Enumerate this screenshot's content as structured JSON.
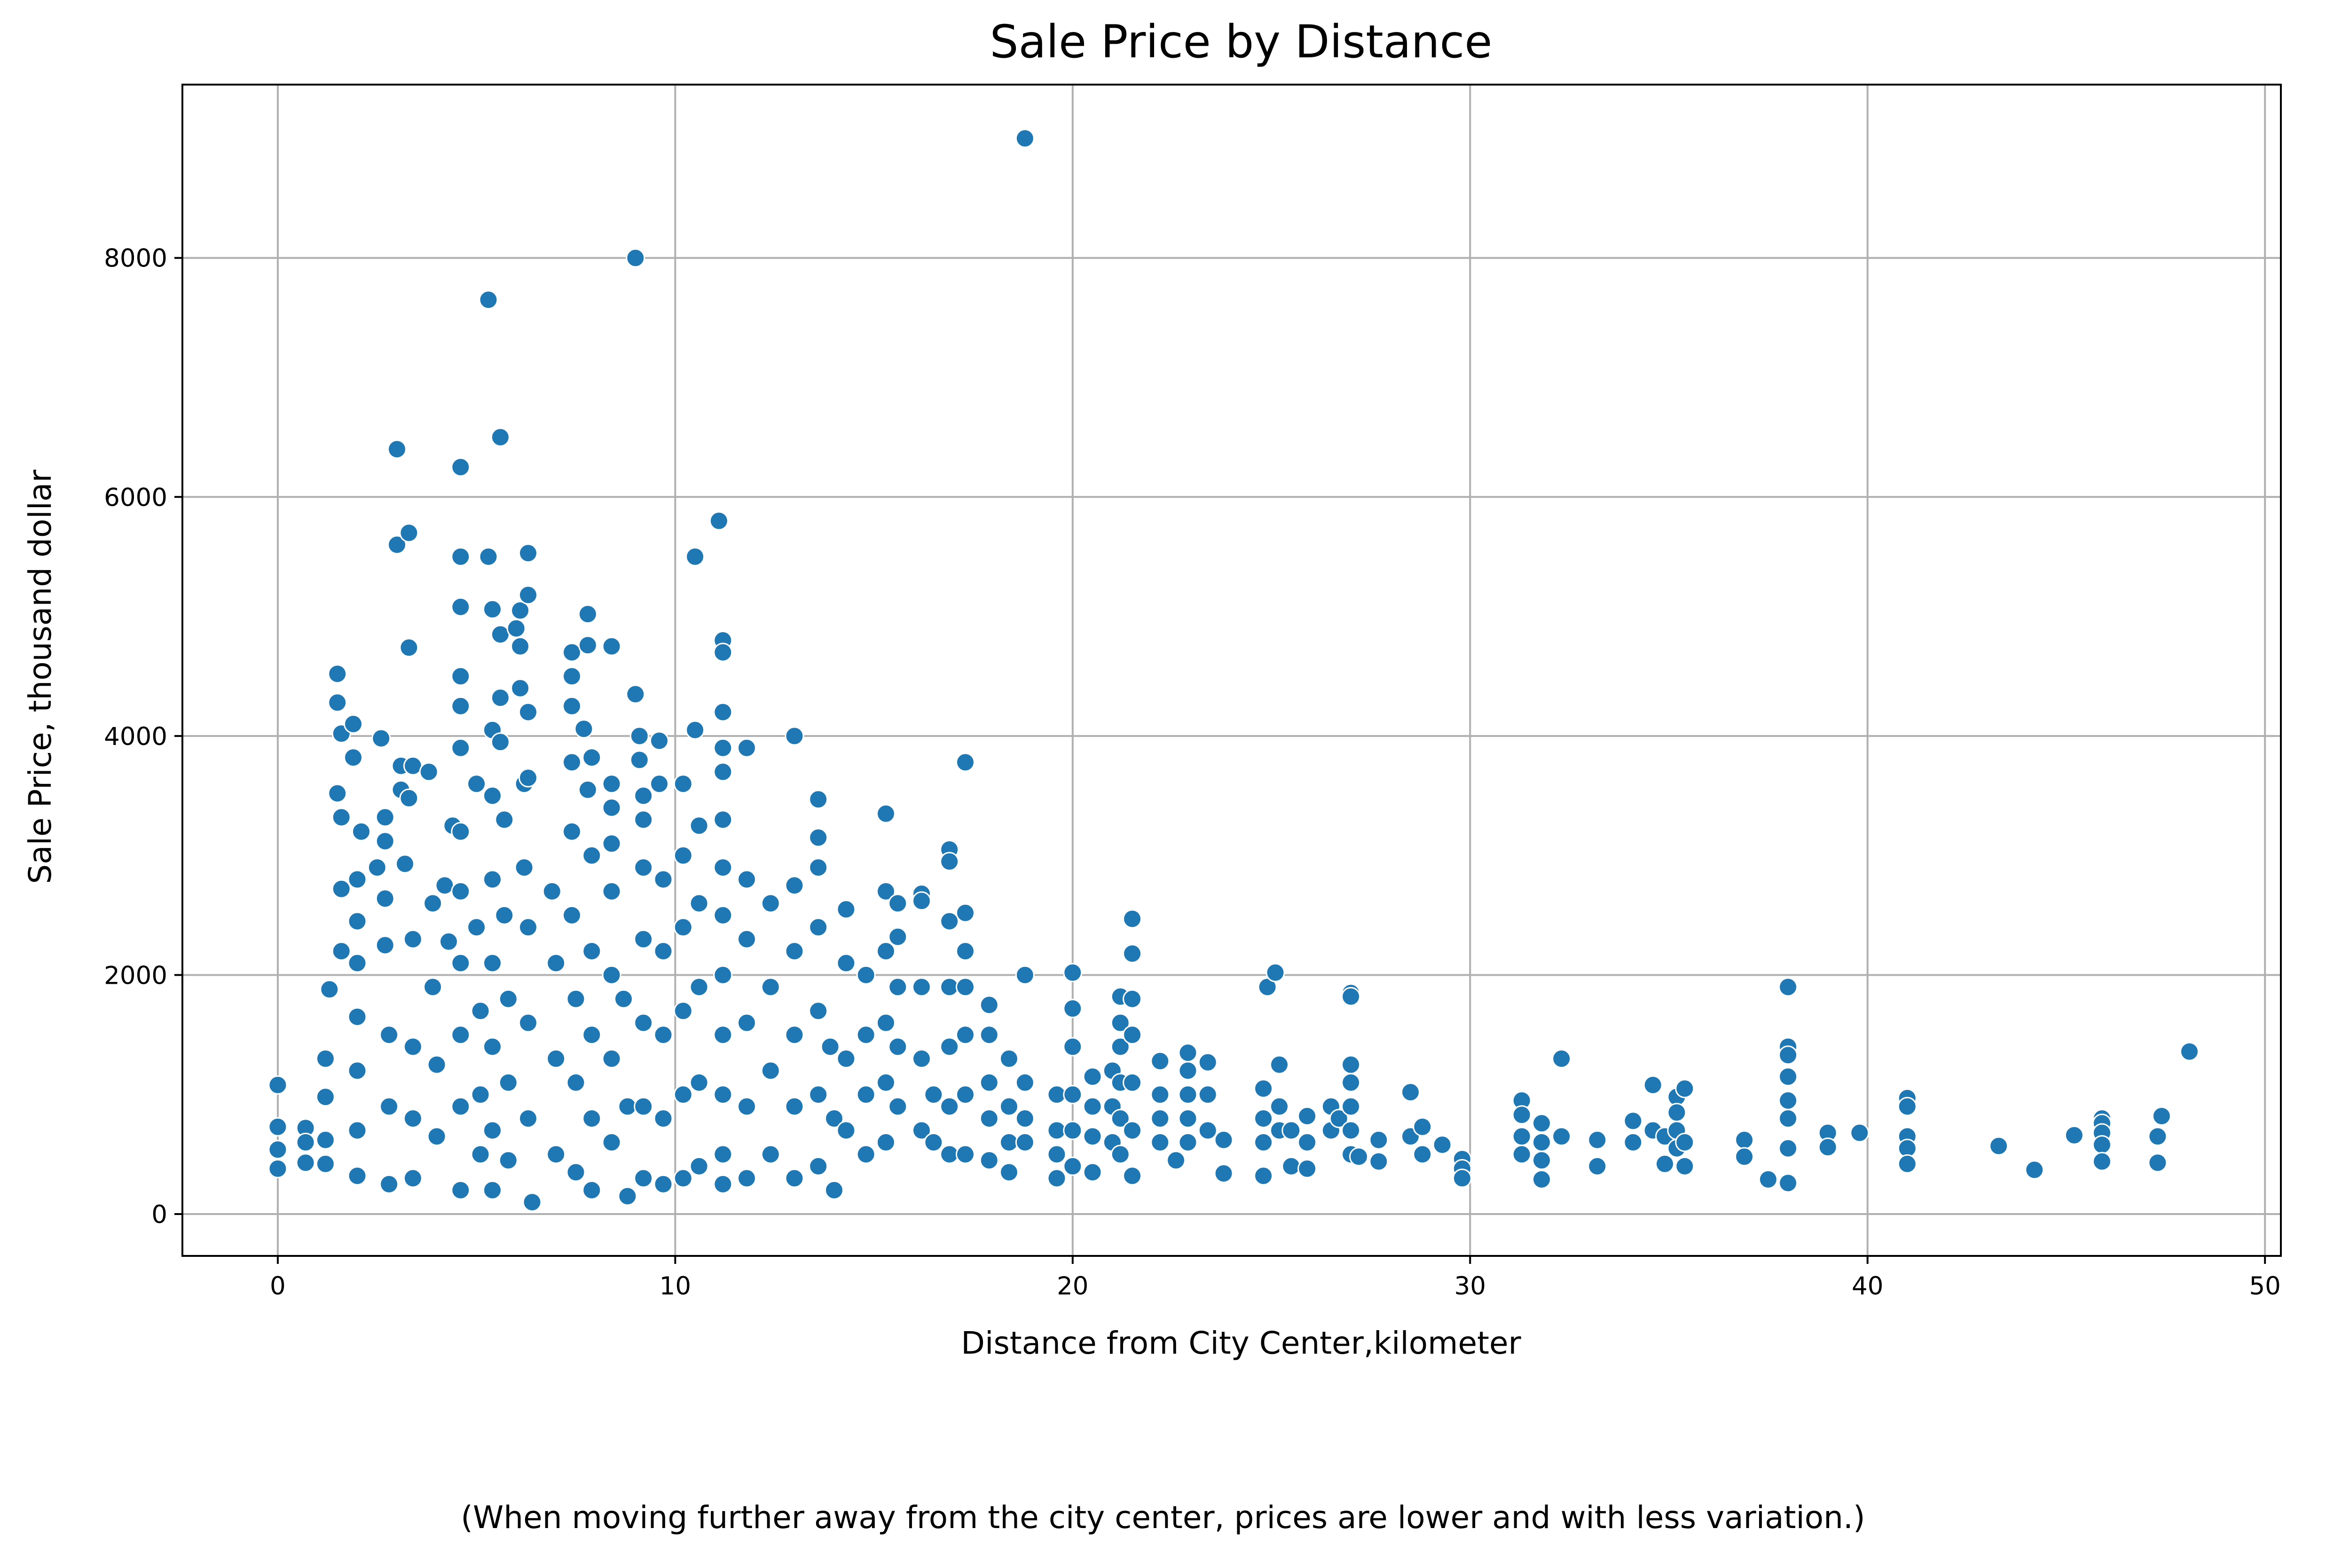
{
  "caption": "(When moving further away from the city center, prices are lower and with less variation.)",
  "colors": {
    "point": "#1f77b4",
    "point_edge": "#ffffff",
    "grid": "#b0b0b0",
    "axis": "#000000"
  },
  "chart_data": {
    "type": "scatter",
    "title": "Sale Price by Distance",
    "xlabel": "Distance from City Center,kilometer",
    "ylabel": "Sale Price, thousand dollar",
    "xlim": [
      -2.4,
      50.4
    ],
    "ylim": [
      -350,
      9450
    ],
    "xticks": [
      0,
      10,
      20,
      30,
      40,
      50
    ],
    "yticks": [
      0,
      2000,
      4000,
      6000,
      8000
    ],
    "grid": true,
    "legend": "none",
    "points": [
      [
        0.0,
        1080
      ],
      [
        0.0,
        730
      ],
      [
        0.0,
        540
      ],
      [
        0.0,
        380
      ],
      [
        0.7,
        720
      ],
      [
        0.7,
        600
      ],
      [
        0.7,
        430
      ],
      [
        1.2,
        1300
      ],
      [
        1.2,
        980
      ],
      [
        1.2,
        620
      ],
      [
        1.2,
        420
      ],
      [
        1.3,
        1880
      ],
      [
        1.5,
        4520
      ],
      [
        1.5,
        4280
      ],
      [
        1.6,
        4020
      ],
      [
        1.5,
        3520
      ],
      [
        1.6,
        3320
      ],
      [
        1.6,
        2720
      ],
      [
        1.6,
        2200
      ],
      [
        1.9,
        4100
      ],
      [
        1.9,
        3820
      ],
      [
        2.0,
        2800
      ],
      [
        2.0,
        2450
      ],
      [
        2.0,
        2100
      ],
      [
        2.0,
        1650
      ],
      [
        2.0,
        1200
      ],
      [
        2.0,
        700
      ],
      [
        2.0,
        320
      ],
      [
        2.1,
        3200
      ],
      [
        2.5,
        2900
      ],
      [
        2.6,
        3980
      ],
      [
        2.7,
        3320
      ],
      [
        2.7,
        3120
      ],
      [
        2.7,
        2640
      ],
      [
        2.7,
        2250
      ],
      [
        2.8,
        1500
      ],
      [
        2.8,
        900
      ],
      [
        2.8,
        250
      ],
      [
        3.0,
        6400
      ],
      [
        3.0,
        5600
      ],
      [
        3.1,
        3750
      ],
      [
        3.1,
        3550
      ],
      [
        3.2,
        2930
      ],
      [
        3.3,
        3480
      ],
      [
        3.3,
        5700
      ],
      [
        3.3,
        4740
      ],
      [
        3.4,
        3750
      ],
      [
        3.4,
        2300
      ],
      [
        3.4,
        1400
      ],
      [
        3.4,
        800
      ],
      [
        3.4,
        300
      ],
      [
        3.8,
        3700
      ],
      [
        3.9,
        2600
      ],
      [
        3.9,
        1900
      ],
      [
        4.0,
        1250
      ],
      [
        4.0,
        650
      ],
      [
        4.2,
        2750
      ],
      [
        4.3,
        2280
      ],
      [
        4.4,
        3250
      ],
      [
        4.6,
        6250
      ],
      [
        4.6,
        5500
      ],
      [
        4.6,
        5080
      ],
      [
        4.6,
        4500
      ],
      [
        4.6,
        4250
      ],
      [
        4.6,
        3900
      ],
      [
        4.6,
        3200
      ],
      [
        4.6,
        2700
      ],
      [
        4.6,
        2100
      ],
      [
        4.6,
        1500
      ],
      [
        4.6,
        900
      ],
      [
        4.6,
        200
      ],
      [
        5.0,
        3600
      ],
      [
        5.0,
        2400
      ],
      [
        5.1,
        1700
      ],
      [
        5.1,
        1000
      ],
      [
        5.1,
        500
      ],
      [
        5.3,
        7650
      ],
      [
        5.3,
        5500
      ],
      [
        5.4,
        5060
      ],
      [
        5.4,
        4050
      ],
      [
        5.4,
        3500
      ],
      [
        5.4,
        2800
      ],
      [
        5.4,
        2100
      ],
      [
        5.4,
        1400
      ],
      [
        5.4,
        700
      ],
      [
        5.4,
        200
      ],
      [
        5.6,
        6500
      ],
      [
        5.6,
        4850
      ],
      [
        5.6,
        4320
      ],
      [
        5.6,
        3950
      ],
      [
        5.7,
        3300
      ],
      [
        5.7,
        2500
      ],
      [
        5.8,
        1800
      ],
      [
        5.8,
        1100
      ],
      [
        5.8,
        450
      ],
      [
        6.0,
        4900
      ],
      [
        6.1,
        4400
      ],
      [
        6.1,
        5050
      ],
      [
        6.1,
        4750
      ],
      [
        6.2,
        3600
      ],
      [
        6.2,
        2900
      ],
      [
        6.3,
        5530
      ],
      [
        6.3,
        5180
      ],
      [
        6.3,
        4200
      ],
      [
        6.3,
        3650
      ],
      [
        6.3,
        2400
      ],
      [
        6.3,
        1600
      ],
      [
        6.3,
        800
      ],
      [
        6.4,
        100
      ],
      [
        6.9,
        2700
      ],
      [
        7.0,
        2100
      ],
      [
        7.0,
        1300
      ],
      [
        7.0,
        500
      ],
      [
        7.4,
        4700
      ],
      [
        7.4,
        4500
      ],
      [
        7.4,
        4250
      ],
      [
        7.4,
        3780
      ],
      [
        7.4,
        3200
      ],
      [
        7.4,
        2500
      ],
      [
        7.5,
        1800
      ],
      [
        7.5,
        1100
      ],
      [
        7.5,
        350
      ],
      [
        7.7,
        4060
      ],
      [
        7.8,
        5020
      ],
      [
        7.8,
        4760
      ],
      [
        7.8,
        3550
      ],
      [
        7.9,
        3820
      ],
      [
        7.9,
        3000
      ],
      [
        7.9,
        2200
      ],
      [
        7.9,
        1500
      ],
      [
        7.9,
        800
      ],
      [
        7.9,
        200
      ],
      [
        8.4,
        4750
      ],
      [
        8.4,
        3600
      ],
      [
        8.4,
        3400
      ],
      [
        8.4,
        3100
      ],
      [
        8.4,
        2700
      ],
      [
        8.4,
        2000
      ],
      [
        8.4,
        1300
      ],
      [
        8.4,
        600
      ],
      [
        8.7,
        1800
      ],
      [
        8.8,
        900
      ],
      [
        8.8,
        150
      ],
      [
        9.0,
        8000
      ],
      [
        9.0,
        4350
      ],
      [
        9.1,
        4000
      ],
      [
        9.1,
        3800
      ],
      [
        9.2,
        3500
      ],
      [
        9.2,
        3300
      ],
      [
        9.2,
        2900
      ],
      [
        9.2,
        2300
      ],
      [
        9.2,
        1600
      ],
      [
        9.2,
        900
      ],
      [
        9.2,
        300
      ],
      [
        9.6,
        3960
      ],
      [
        9.6,
        3600
      ],
      [
        9.7,
        2800
      ],
      [
        9.7,
        2200
      ],
      [
        9.7,
        1500
      ],
      [
        9.7,
        800
      ],
      [
        9.7,
        250
      ],
      [
        10.2,
        3600
      ],
      [
        10.2,
        3000
      ],
      [
        10.2,
        2400
      ],
      [
        10.2,
        1700
      ],
      [
        10.2,
        1000
      ],
      [
        10.2,
        300
      ],
      [
        10.5,
        5500
      ],
      [
        10.5,
        4050
      ],
      [
        10.6,
        3250
      ],
      [
        10.6,
        2600
      ],
      [
        10.6,
        1900
      ],
      [
        10.6,
        1100
      ],
      [
        10.6,
        400
      ],
      [
        11.1,
        5800
      ],
      [
        11.2,
        4800
      ],
      [
        11.2,
        4700
      ],
      [
        11.2,
        4200
      ],
      [
        11.2,
        3900
      ],
      [
        11.2,
        3700
      ],
      [
        11.2,
        3300
      ],
      [
        11.2,
        2900
      ],
      [
        11.2,
        2500
      ],
      [
        11.2,
        2000
      ],
      [
        11.2,
        1500
      ],
      [
        11.2,
        1000
      ],
      [
        11.2,
        500
      ],
      [
        11.2,
        250
      ],
      [
        11.8,
        3900
      ],
      [
        11.8,
        2800
      ],
      [
        11.8,
        2300
      ],
      [
        11.8,
        1600
      ],
      [
        11.8,
        900
      ],
      [
        11.8,
        300
      ],
      [
        12.4,
        2600
      ],
      [
        12.4,
        1900
      ],
      [
        12.4,
        1200
      ],
      [
        12.4,
        500
      ],
      [
        13.0,
        4000
      ],
      [
        13.0,
        2750
      ],
      [
        13.0,
        2200
      ],
      [
        13.0,
        1500
      ],
      [
        13.0,
        900
      ],
      [
        13.0,
        300
      ],
      [
        13.6,
        3470
      ],
      [
        13.6,
        3150
      ],
      [
        13.6,
        2900
      ],
      [
        13.6,
        2400
      ],
      [
        13.6,
        1700
      ],
      [
        13.6,
        1000
      ],
      [
        13.6,
        400
      ],
      [
        13.9,
        1400
      ],
      [
        14.0,
        800
      ],
      [
        14.0,
        200
      ],
      [
        14.3,
        2550
      ],
      [
        14.3,
        2100
      ],
      [
        14.3,
        1300
      ],
      [
        14.3,
        700
      ],
      [
        14.8,
        2000
      ],
      [
        14.8,
        1500
      ],
      [
        14.8,
        1000
      ],
      [
        14.8,
        500
      ],
      [
        15.3,
        3350
      ],
      [
        15.3,
        2700
      ],
      [
        15.3,
        2200
      ],
      [
        15.3,
        1600
      ],
      [
        15.3,
        1100
      ],
      [
        15.3,
        600
      ],
      [
        15.6,
        2600
      ],
      [
        15.6,
        2320
      ],
      [
        15.6,
        1900
      ],
      [
        15.6,
        1400
      ],
      [
        15.6,
        900
      ],
      [
        16.2,
        2680
      ],
      [
        16.2,
        2620
      ],
      [
        16.2,
        1900
      ],
      [
        16.2,
        1300
      ],
      [
        16.2,
        700
      ],
      [
        16.5,
        1000
      ],
      [
        16.5,
        600
      ],
      [
        16.9,
        3050
      ],
      [
        16.9,
        2950
      ],
      [
        16.9,
        2450
      ],
      [
        16.9,
        1900
      ],
      [
        16.9,
        1400
      ],
      [
        16.9,
        900
      ],
      [
        16.9,
        500
      ],
      [
        17.3,
        3780
      ],
      [
        17.3,
        2520
      ],
      [
        17.3,
        2200
      ],
      [
        17.3,
        1900
      ],
      [
        17.3,
        1500
      ],
      [
        17.3,
        1000
      ],
      [
        17.3,
        500
      ],
      [
        17.9,
        1750
      ],
      [
        17.9,
        1500
      ],
      [
        17.9,
        1100
      ],
      [
        17.9,
        800
      ],
      [
        17.9,
        450
      ],
      [
        18.4,
        1300
      ],
      [
        18.4,
        900
      ],
      [
        18.4,
        600
      ],
      [
        18.4,
        350
      ],
      [
        18.8,
        9000
      ],
      [
        18.8,
        2000
      ],
      [
        18.8,
        1100
      ],
      [
        18.8,
        800
      ],
      [
        18.8,
        600
      ],
      [
        19.6,
        1000
      ],
      [
        19.6,
        700
      ],
      [
        19.6,
        500
      ],
      [
        19.6,
        300
      ],
      [
        20.0,
        2020
      ],
      [
        20.0,
        1720
      ],
      [
        20.0,
        1400
      ],
      [
        20.0,
        1000
      ],
      [
        20.0,
        700
      ],
      [
        20.0,
        400
      ],
      [
        20.5,
        1150
      ],
      [
        20.5,
        900
      ],
      [
        20.5,
        650
      ],
      [
        20.5,
        350
      ],
      [
        21.0,
        1200
      ],
      [
        21.0,
        900
      ],
      [
        21.0,
        600
      ],
      [
        21.2,
        1820
      ],
      [
        21.2,
        1600
      ],
      [
        21.2,
        1400
      ],
      [
        21.2,
        1100
      ],
      [
        21.2,
        800
      ],
      [
        21.2,
        500
      ],
      [
        21.5,
        2470
      ],
      [
        21.5,
        2180
      ],
      [
        21.5,
        1800
      ],
      [
        21.5,
        1500
      ],
      [
        21.5,
        1100
      ],
      [
        21.5,
        700
      ],
      [
        21.5,
        320
      ],
      [
        22.2,
        1280
      ],
      [
        22.2,
        1000
      ],
      [
        22.2,
        800
      ],
      [
        22.2,
        600
      ],
      [
        22.9,
        1350
      ],
      [
        22.9,
        1200
      ],
      [
        22.9,
        1000
      ],
      [
        22.9,
        800
      ],
      [
        22.9,
        600
      ],
      [
        22.6,
        450
      ],
      [
        23.4,
        1270
      ],
      [
        23.4,
        1000
      ],
      [
        23.4,
        700
      ],
      [
        23.8,
        620
      ],
      [
        23.8,
        340
      ],
      [
        24.8,
        1050
      ],
      [
        24.8,
        800
      ],
      [
        24.8,
        600
      ],
      [
        24.8,
        320
      ],
      [
        24.9,
        1900
      ],
      [
        25.1,
        2020
      ],
      [
        25.2,
        1250
      ],
      [
        25.2,
        900
      ],
      [
        25.2,
        700
      ],
      [
        25.5,
        700
      ],
      [
        25.5,
        400
      ],
      [
        25.9,
        820
      ],
      [
        25.9,
        600
      ],
      [
        25.9,
        380
      ],
      [
        26.5,
        900
      ],
      [
        26.5,
        700
      ],
      [
        26.7,
        800
      ],
      [
        27.0,
        1850
      ],
      [
        27.0,
        1820
      ],
      [
        27.0,
        1250
      ],
      [
        27.0,
        1100
      ],
      [
        27.0,
        900
      ],
      [
        27.0,
        700
      ],
      [
        27.0,
        500
      ],
      [
        27.2,
        480
      ],
      [
        27.7,
        620
      ],
      [
        27.7,
        440
      ],
      [
        28.5,
        1020
      ],
      [
        28.5,
        650
      ],
      [
        28.8,
        730
      ],
      [
        28.8,
        500
      ],
      [
        29.3,
        580
      ],
      [
        29.8,
        460
      ],
      [
        29.8,
        380
      ],
      [
        29.8,
        300
      ],
      [
        31.3,
        950
      ],
      [
        31.3,
        830
      ],
      [
        31.3,
        650
      ],
      [
        31.3,
        500
      ],
      [
        31.8,
        760
      ],
      [
        31.8,
        600
      ],
      [
        31.8,
        450
      ],
      [
        31.8,
        290
      ],
      [
        32.3,
        1300
      ],
      [
        32.3,
        650
      ],
      [
        33.2,
        620
      ],
      [
        33.2,
        400
      ],
      [
        34.1,
        780
      ],
      [
        34.1,
        600
      ],
      [
        34.6,
        1080
      ],
      [
        34.6,
        700
      ],
      [
        34.9,
        650
      ],
      [
        34.9,
        420
      ],
      [
        35.2,
        980
      ],
      [
        35.2,
        850
      ],
      [
        35.2,
        700
      ],
      [
        35.2,
        550
      ],
      [
        35.4,
        1050
      ],
      [
        35.4,
        600
      ],
      [
        35.4,
        400
      ],
      [
        36.9,
        620
      ],
      [
        36.9,
        480
      ],
      [
        37.5,
        290
      ],
      [
        38.0,
        1900
      ],
      [
        38.0,
        1400
      ],
      [
        38.0,
        1330
      ],
      [
        38.0,
        1150
      ],
      [
        38.0,
        950
      ],
      [
        38.0,
        800
      ],
      [
        38.0,
        550
      ],
      [
        38.0,
        260
      ],
      [
        39.0,
        680
      ],
      [
        39.0,
        560
      ],
      [
        39.8,
        680
      ],
      [
        41.0,
        970
      ],
      [
        41.0,
        900
      ],
      [
        41.0,
        650
      ],
      [
        41.0,
        550
      ],
      [
        41.0,
        420
      ],
      [
        43.3,
        570
      ],
      [
        44.2,
        370
      ],
      [
        45.2,
        660
      ],
      [
        45.9,
        800
      ],
      [
        45.9,
        760
      ],
      [
        45.9,
        680
      ],
      [
        45.9,
        580
      ],
      [
        45.9,
        440
      ],
      [
        47.3,
        650
      ],
      [
        47.3,
        430
      ],
      [
        47.4,
        820
      ],
      [
        48.1,
        1360
      ]
    ]
  }
}
